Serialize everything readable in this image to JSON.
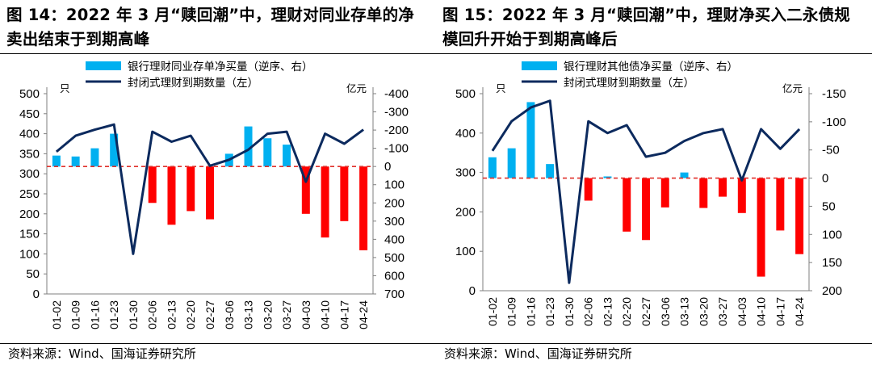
{
  "charts": [
    {
      "title": "图 14：2022 年 3 月“赎回潮”中，理财对同业存单的净卖出结束于到期高峰",
      "source": "资料来源：Wind、国海证券研究所",
      "chart_data": {
        "type": "bar+line",
        "x": [
          "01-02",
          "01-09",
          "01-16",
          "01-23",
          "01-30",
          "02-06",
          "02-13",
          "02-20",
          "02-27",
          "03-06",
          "03-13",
          "03-20",
          "03-27",
          "04-03",
          "04-10",
          "04-17",
          "04-24"
        ],
        "bar_series": {
          "name": "银行理财同业存单净买量（逆序、右）",
          "axis": "right",
          "values": [
            -60,
            -55,
            -100,
            -180,
            null,
            200,
            320,
            245,
            290,
            -70,
            -220,
            -155,
            -120,
            260,
            390,
            300,
            460
          ]
        },
        "line_series": {
          "name": "封闭式理财到期数量（左）",
          "axis": "left",
          "values": [
            355,
            395,
            410,
            423,
            100,
            405,
            380,
            395,
            320,
            335,
            360,
            400,
            405,
            280,
            400,
            375,
            410
          ]
        },
        "left_axis": {
          "unit": "只",
          "min": 0,
          "max": 500,
          "ticks": [
            0,
            50,
            100,
            150,
            200,
            250,
            300,
            350,
            400,
            450,
            500
          ]
        },
        "right_axis": {
          "unit": "亿元",
          "min": -400,
          "max": 700,
          "reversed": true,
          "ticks": [
            "-400",
            "-300",
            "-200",
            "-100",
            "0",
            "100",
            "200",
            "300",
            "400",
            "500",
            "600",
            "700"
          ]
        },
        "colors": {
          "bar_positive": "#00b0f0",
          "bar_negative": "#ff0000",
          "line": "#0c2a5e",
          "zero_line": "#e0302a"
        }
      }
    },
    {
      "title": "图 15：2022 年 3 月“赎回潮”中，理财净买入二永债规模回升开始于到期高峰后",
      "source": "资料来源：Wind、国海证券研究所",
      "chart_data": {
        "type": "bar+line",
        "x": [
          "01-02",
          "01-09",
          "01-16",
          "01-23",
          "01-30",
          "02-06",
          "02-13",
          "02-20",
          "02-27",
          "03-06",
          "03-13",
          "03-20",
          "03-27",
          "04-03",
          "04-10",
          "04-17",
          "04-24"
        ],
        "bar_series": {
          "name": "银行理财其他债净买量（逆序、右）",
          "axis": "right",
          "values": [
            -37,
            -53,
            -135,
            -25,
            null,
            40,
            -3,
            95,
            110,
            52,
            -10,
            53,
            33,
            62,
            175,
            93,
            135
          ]
        },
        "line_series": {
          "name": "封闭式理财到期数量（左）",
          "axis": "left",
          "values": [
            355,
            430,
            465,
            482,
            20,
            430,
            400,
            420,
            340,
            350,
            380,
            400,
            410,
            280,
            410,
            360,
            410
          ]
        },
        "left_axis": {
          "unit": "只",
          "min": 0,
          "max": 500,
          "ticks": [
            0,
            100,
            200,
            300,
            400,
            500
          ]
        },
        "right_axis": {
          "unit": "亿元",
          "min": -150,
          "max": 200,
          "reversed": true,
          "ticks": [
            "-150",
            "-100",
            "-50",
            "0",
            "50",
            "100",
            "150",
            "200"
          ]
        },
        "colors": {
          "bar_positive": "#00b0f0",
          "bar_negative": "#ff0000",
          "line": "#0c2a5e",
          "zero_line": "#e0302a"
        }
      }
    }
  ]
}
